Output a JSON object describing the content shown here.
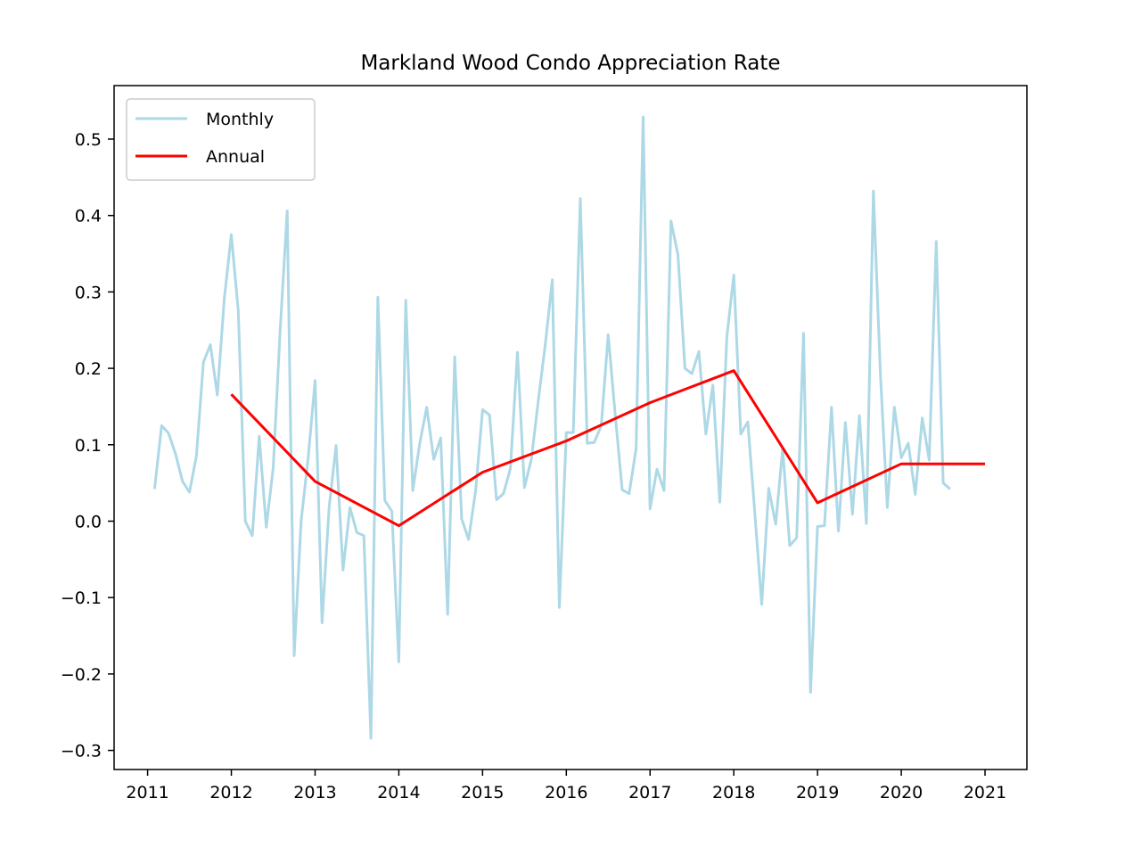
{
  "chart_data": {
    "type": "line",
    "title": "Markland Wood Condo Appreciation Rate",
    "xlabel": "",
    "ylabel": "",
    "xlim": [
      2010.6,
      2021.5
    ],
    "ylim": [
      -0.325,
      0.57
    ],
    "xticks": [
      2011,
      2012,
      2013,
      2014,
      2015,
      2016,
      2017,
      2018,
      2019,
      2020,
      2021
    ],
    "yticks": [
      -0.3,
      -0.2,
      -0.1,
      0.0,
      0.1,
      0.2,
      0.3,
      0.4,
      0.5
    ],
    "ytick_labels": [
      "−0.3",
      "−0.2",
      "−0.1",
      "0.0",
      "0.1",
      "0.2",
      "0.3",
      "0.4",
      "0.5"
    ],
    "grid": false,
    "legend": {
      "placement": "top-left"
    },
    "series": [
      {
        "name": "Monthly",
        "color": "#add8e6",
        "x": [
          2011.083,
          2011.167,
          2011.25,
          2011.333,
          2011.417,
          2011.5,
          2011.583,
          2011.667,
          2011.75,
          2011.833,
          2011.917,
          2012.0,
          2012.083,
          2012.167,
          2012.25,
          2012.333,
          2012.417,
          2012.5,
          2012.583,
          2012.667,
          2012.75,
          2012.833,
          2012.917,
          2013.0,
          2013.083,
          2013.167,
          2013.25,
          2013.333,
          2013.417,
          2013.5,
          2013.583,
          2013.667,
          2013.75,
          2013.833,
          2013.917,
          2014.0,
          2014.083,
          2014.167,
          2014.25,
          2014.333,
          2014.417,
          2014.5,
          2014.583,
          2014.667,
          2014.75,
          2014.833,
          2014.917,
          2015.0,
          2015.083,
          2015.167,
          2015.25,
          2015.333,
          2015.417,
          2015.5,
          2015.583,
          2015.667,
          2015.75,
          2015.833,
          2015.917,
          2016.0,
          2016.083,
          2016.167,
          2016.25,
          2016.333,
          2016.417,
          2016.5,
          2016.583,
          2016.667,
          2016.75,
          2016.833,
          2016.917,
          2017.0,
          2017.083,
          2017.167,
          2017.25,
          2017.333,
          2017.417,
          2017.5,
          2017.583,
          2017.667,
          2017.75,
          2017.833,
          2017.917,
          2018.0,
          2018.083,
          2018.167,
          2018.25,
          2018.333,
          2018.417,
          2018.5,
          2018.583,
          2018.667,
          2018.75,
          2018.833,
          2018.917,
          2019.0,
          2019.083,
          2019.167,
          2019.25,
          2019.333,
          2019.417,
          2019.5,
          2019.583,
          2019.667,
          2019.75,
          2019.833,
          2019.917,
          2020.0,
          2020.083,
          2020.167,
          2020.25,
          2020.333,
          2020.417,
          2020.5,
          2020.583
        ],
        "y": [
          0.042,
          0.125,
          0.115,
          0.088,
          0.052,
          0.038,
          0.085,
          0.208,
          0.231,
          0.165,
          0.292,
          0.375,
          0.275,
          0.0,
          -0.019,
          0.111,
          -0.008,
          0.07,
          0.25,
          0.406,
          -0.176,
          0.0,
          0.083,
          0.184,
          -0.133,
          0.018,
          0.099,
          -0.064,
          0.018,
          -0.015,
          -0.019,
          -0.284,
          0.293,
          0.027,
          0.013,
          -0.184,
          0.289,
          0.04,
          0.102,
          0.149,
          0.081,
          0.109,
          -0.122,
          0.215,
          0.003,
          -0.024,
          0.04,
          0.146,
          0.139,
          0.028,
          0.036,
          0.069,
          0.221,
          0.044,
          0.081,
          0.159,
          0.232,
          0.316,
          -0.113,
          0.116,
          0.116,
          0.422,
          0.102,
          0.103,
          0.125,
          0.244,
          0.14,
          0.041,
          0.036,
          0.095,
          0.529,
          0.016,
          0.068,
          0.04,
          0.393,
          0.349,
          0.2,
          0.193,
          0.222,
          0.114,
          0.178,
          0.025,
          0.241,
          0.322,
          0.114,
          0.13,
          0.012,
          -0.109,
          0.043,
          -0.004,
          0.095,
          -0.032,
          -0.022,
          0.246,
          -0.224,
          -0.007,
          -0.006,
          0.149,
          -0.013,
          0.129,
          0.009,
          0.138,
          -0.003,
          0.432,
          0.194,
          0.018,
          0.149,
          0.083,
          0.102,
          0.035,
          0.135,
          0.08,
          0.366,
          0.05,
          0.042
        ]
      },
      {
        "name": "Annual",
        "color": "#ff0000",
        "x": [
          2012,
          2013,
          2014,
          2015,
          2016,
          2017,
          2018,
          2019,
          2020,
          2021
        ],
        "y": [
          0.166,
          0.052,
          -0.006,
          0.064,
          0.105,
          0.155,
          0.197,
          0.024,
          0.075,
          0.075
        ]
      }
    ]
  }
}
